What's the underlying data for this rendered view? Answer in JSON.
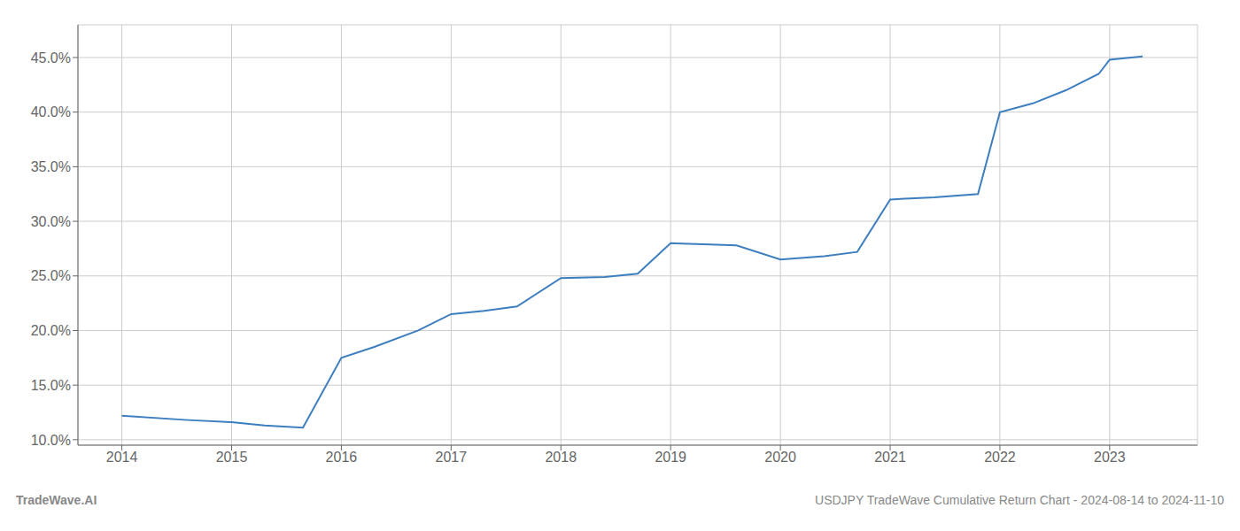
{
  "chart_data": {
    "type": "line",
    "x": [
      2014.0,
      2014.6,
      2015.0,
      2015.3,
      2015.65,
      2016.0,
      2016.3,
      2016.7,
      2017.0,
      2017.3,
      2017.6,
      2018.0,
      2018.4,
      2018.7,
      2019.0,
      2019.3,
      2019.6,
      2020.0,
      2020.4,
      2020.7,
      2021.0,
      2021.4,
      2021.8,
      2022.0,
      2022.3,
      2022.6,
      2022.9,
      2023.0,
      2023.3
    ],
    "values": [
      0.122,
      0.118,
      0.116,
      0.113,
      0.111,
      0.175,
      0.185,
      0.2,
      0.215,
      0.218,
      0.222,
      0.248,
      0.249,
      0.252,
      0.28,
      0.279,
      0.278,
      0.265,
      0.268,
      0.272,
      0.32,
      0.322,
      0.325,
      0.4,
      0.408,
      0.42,
      0.435,
      0.448,
      0.451
    ],
    "color": "#3d7ebf",
    "xlim": [
      2013.6,
      2023.8
    ],
    "ylim": [
      0.095,
      0.48
    ],
    "xticks": [
      2014,
      2015,
      2016,
      2017,
      2018,
      2019,
      2020,
      2021,
      2022,
      2023
    ],
    "yticks": [
      {
        "value": 0.1,
        "label": "10.0%"
      },
      {
        "value": 0.15,
        "label": "15.0%"
      },
      {
        "value": 0.2,
        "label": "20.0%"
      },
      {
        "value": 0.25,
        "label": "25.0%"
      },
      {
        "value": 0.3,
        "label": "30.0%"
      },
      {
        "value": 0.35,
        "label": "35.0%"
      },
      {
        "value": 0.4,
        "label": "40.0%"
      },
      {
        "value": 0.45,
        "label": "45.0%"
      }
    ],
    "grid": true,
    "annotations": [
      "TradeWave.AI",
      "USDJPY TradeWave Cumulative Return Chart - 2024-08-14 to 2024-11-10"
    ]
  }
}
